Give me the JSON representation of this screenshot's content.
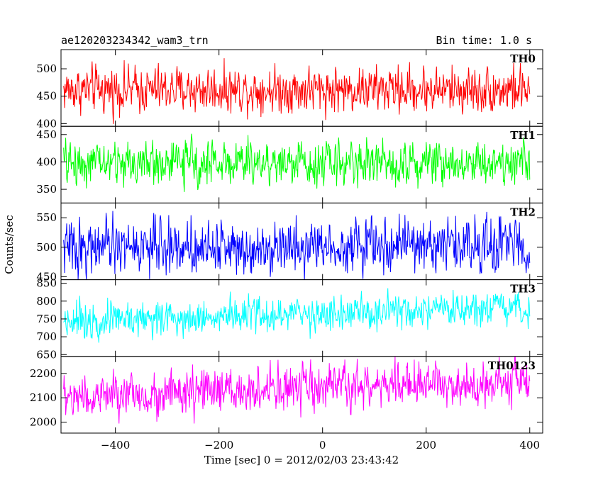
{
  "title_left": "ae120203234342_wam3_trn",
  "title_right": "Bin time: 1.0 s",
  "chart_data": {
    "type": "line",
    "title": "ae120203234342_wam3_trn",
    "subtitle": "Bin time: 1.0 s",
    "xlabel": "Time [sec] 0 = 2012/02/03 23:43:42",
    "ylabel": "Counts/sec",
    "xlim": [
      -505,
      425
    ],
    "x_start": -500,
    "x_end": 400,
    "x_step": 1,
    "x_ticks": [
      -400,
      -200,
      0,
      200,
      400
    ],
    "x_tick_labels": [
      "−400",
      "−200",
      "0",
      "200",
      "400"
    ],
    "grid": false,
    "panels": [
      {
        "label": "TH0",
        "color": "#ff0000",
        "ylim": [
          395,
          535
        ],
        "yticks": [
          400,
          450,
          500
        ],
        "mean_start": 462,
        "mean_end": 462,
        "noise": 25
      },
      {
        "label": "TH1",
        "color": "#00ff00",
        "ylim": [
          325,
          465
        ],
        "yticks": [
          350,
          400,
          450
        ],
        "mean_start": 398,
        "mean_end": 400,
        "noise": 24
      },
      {
        "label": "TH2",
        "color": "#0000ff",
        "ylim": [
          445,
          575
        ],
        "yticks": [
          450,
          500,
          550
        ],
        "mean_start": 500,
        "mean_end": 505,
        "noise": 27
      },
      {
        "label": "TH3",
        "color": "#00ffff",
        "ylim": [
          645,
          860
        ],
        "yticks": [
          650,
          700,
          750,
          800,
          850
        ],
        "mean_start": 748,
        "mean_end": 775,
        "noise": 30
      },
      {
        "label": "TH0123",
        "color": "#ff00ff",
        "ylim": [
          1955,
          2270
        ],
        "yticks": [
          2000,
          2100,
          2200
        ],
        "mean_start": 2100,
        "mean_end": 2170,
        "noise": 55
      }
    ]
  }
}
